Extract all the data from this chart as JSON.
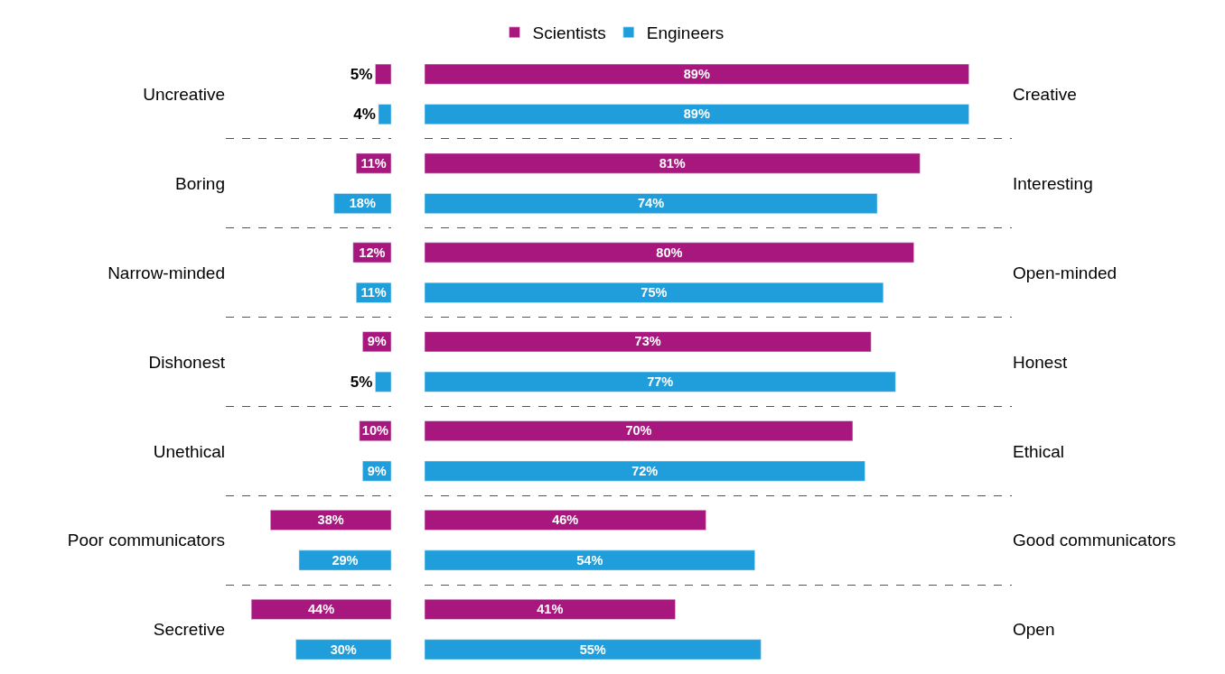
{
  "chart_data": [
    {
      "type": "bar",
      "orientation": "horizontal",
      "categories": [
        "Uncreative",
        "Boring",
        "Narrow-minded",
        "Dishonest",
        "Unethical",
        "Poor communicators",
        "Secretive"
      ],
      "xlim": [
        52,
        0
      ],
      "grid": "y",
      "legend": "top",
      "data_labels": true,
      "series": [
        {
          "name": "Scientists",
          "color": "#a8177e",
          "values": [
            5,
            11,
            12,
            9,
            10,
            38,
            44
          ],
          "value_labels": [
            "5%",
            "11%",
            "12%",
            "9%",
            "10%",
            "38%",
            "44%"
          ]
        },
        {
          "name": "Engineers",
          "color": "#1f9edb",
          "values": [
            4,
            18,
            11,
            5,
            9,
            29,
            30
          ],
          "value_labels": [
            "4%",
            "18%",
            "11%",
            "5%",
            "9%",
            "29%",
            "30%"
          ]
        }
      ]
    },
    {
      "type": "bar",
      "orientation": "horizontal",
      "categories": [
        "Creative",
        "Interesting",
        "Open-minded",
        "Honest",
        "Ethical",
        "Good communicators",
        "Open"
      ],
      "xlim": [
        0,
        96
      ],
      "grid": "y",
      "legend": "top",
      "data_labels": true,
      "series": [
        {
          "name": "Scientists",
          "color": "#a8177e",
          "values": [
            89,
            81,
            80,
            73,
            70,
            46,
            41
          ],
          "value_labels": [
            "89%",
            "81%",
            "80%",
            "73%",
            "70%",
            "46%",
            "41%"
          ]
        },
        {
          "name": "Engineers",
          "color": "#1f9edb",
          "values": [
            89,
            74,
            75,
            77,
            72,
            54,
            55
          ],
          "value_labels": [
            "89%",
            "74%",
            "75%",
            "77%",
            "72%",
            "54%",
            "55%"
          ]
        }
      ]
    }
  ]
}
